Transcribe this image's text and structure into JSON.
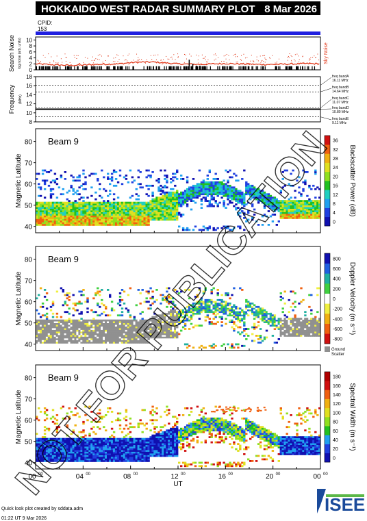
{
  "header": {
    "title": "HOKKAIDO WEST RADAR SUMMARY PLOT",
    "date": "8 Mar 2026",
    "cpid_label": "CPID:",
    "cpid_value": "153",
    "bar_color": "#2020e0"
  },
  "watermark": "NOT FOR PUBLICATION",
  "footer": {
    "credit": "Quick look plot created by sddata.adm",
    "timestamp": "01:22 UT  9 Mar 2026",
    "logo": "ISEE"
  },
  "chart_data": [
    {
      "type": "line",
      "name": "search-noise-panel",
      "ylabel": "Search Noise",
      "ylabel_sub": "log noise (arb. units)",
      "right_label": "Sky Noise",
      "yticks": [
        0,
        2,
        4,
        6,
        8,
        10
      ],
      "ylim": [
        0,
        11
      ],
      "xlim": [
        0,
        24
      ],
      "sky_noise": {
        "color": "#e03010",
        "x": [
          0,
          1,
          2,
          3,
          4,
          5,
          6,
          7,
          8,
          9,
          10,
          11,
          12,
          13,
          14,
          15,
          16,
          17,
          18,
          19,
          20,
          21,
          22,
          23,
          24
        ],
        "y": [
          2.0,
          1.8,
          1.6,
          1.5,
          1.6,
          1.8,
          1.9,
          2.0,
          2.4,
          2.6,
          2.6,
          2.3,
          2.0,
          1.9,
          1.8,
          2.0,
          2.1,
          2.0,
          1.9,
          1.8,
          1.8,
          1.9,
          2.0,
          2.1,
          2.0
        ]
      },
      "search_noise_bars": {
        "x": [
          12.9,
          13.2,
          13.5,
          13.8
        ],
        "y": [
          3.4,
          2.0,
          1.4,
          1.4
        ]
      }
    },
    {
      "type": "line",
      "name": "frequency-panel",
      "ylabel": "Frequency",
      "ylabel_sub": "(MHz)",
      "yticks": [
        8,
        10,
        12,
        14,
        16,
        18
      ],
      "ylim": [
        8,
        18
      ],
      "xlim": [
        0,
        24
      ],
      "freq_bands": [
        {
          "name": "freq bandA",
          "value": "16.11 MHz",
          "freq": 16.11
        },
        {
          "name": "freq bandB",
          "value": "14.64 MHz",
          "freq": 14.64
        },
        {
          "name": "freq bandC",
          "value": "11.07 MHz",
          "freq": 11.07
        },
        {
          "name": "freq bandD",
          "value": "10.80 MHz",
          "freq": 10.8
        },
        {
          "name": "freq bandE",
          "value": "9.11 MHz",
          "freq": 9.11
        }
      ],
      "operating_freq": 10.8
    },
    {
      "type": "heatmap",
      "name": "power-panel",
      "beam_label": "Beam  9",
      "ylabel": "Magnetic Latitude",
      "yticks": [
        40,
        50,
        60,
        70,
        80
      ],
      "ylim": [
        37,
        86
      ],
      "xlim": [
        0,
        24
      ],
      "colorbar_label": "Backscatter Power (dB)",
      "colorbar_ticks": [
        "0",
        "4",
        "8",
        "12",
        "16",
        "20",
        "24",
        "28",
        "32",
        "36"
      ],
      "colorbar_colors": [
        "#1010b0",
        "#2040e0",
        "#20a0f0",
        "#20d0c0",
        "#20c020",
        "#90e020",
        "#e0e020",
        "#f0b010",
        "#f06010",
        "#d01010"
      ]
    },
    {
      "type": "heatmap",
      "name": "velocity-panel",
      "beam_label": "Beam  9",
      "ylabel": "Magnetic Latitude",
      "yticks": [
        40,
        50,
        60,
        70,
        80
      ],
      "ylim": [
        37,
        86
      ],
      "xlim": [
        0,
        24
      ],
      "colorbar_label": "Doppler Velocity (m s⁻¹)",
      "colorbar_ticks": [
        "-800",
        "-600",
        "-400",
        "-200",
        "0",
        "200",
        "400",
        "600",
        "800"
      ],
      "colorbar_colors": [
        "#d01010",
        "#f06010",
        "#f0b010",
        "#f0f040",
        "#ffffff",
        "#40d040",
        "#20b0a0",
        "#2060e0",
        "#1010b0"
      ],
      "ground_scatter_label": "Ground Scatter",
      "ground_scatter_color": "#909090"
    },
    {
      "type": "heatmap",
      "name": "width-panel",
      "beam_label": "Beam  9",
      "ylabel": "Magnetic Latitude",
      "yticks": [
        40,
        50,
        60,
        70,
        80
      ],
      "ylim": [
        37,
        86
      ],
      "xlim": [
        0,
        24
      ],
      "xlabel": "UT",
      "xticks": [
        "00",
        "04",
        "08",
        "12",
        "16",
        "20",
        "00"
      ],
      "colorbar_label": "Spectral Width (m s⁻¹)",
      "colorbar_ticks": [
        "0",
        "20",
        "40",
        "60",
        "80",
        "100",
        "120",
        "140",
        "160",
        "180"
      ],
      "colorbar_colors": [
        "#1010b0",
        "#2040e0",
        "#20a0f0",
        "#20c020",
        "#90e020",
        "#e0e020",
        "#f0b010",
        "#f06010",
        "#d01010",
        "#b00000"
      ]
    }
  ]
}
